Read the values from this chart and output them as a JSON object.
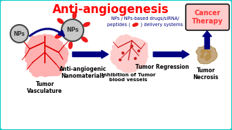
{
  "title": "Anti-angiogenesis",
  "title_color": "#FF0000",
  "title_fontsize": 12,
  "bg_color": "#FFFFFF",
  "border_color": "#00CCCC",
  "border_lw": 3,
  "cancer_therapy_text": "Cancer\nTherapy",
  "cancer_therapy_color": "#FF3333",
  "cancer_therapy_box_color": "#FFCCCC",
  "cancer_therapy_box_edge": "#333333",
  "cancer_therapy_fontsize": 7,
  "np_label": "NPs",
  "np_circle_color": "#C8C8C8",
  "np_circle_edge": "#444444",
  "np_spikes_color": "#EE1111",
  "np_text_color": "#333333",
  "np_small_label": "NPs",
  "arrow_color": "#000080",
  "label_antiang": "Anti-angiogenic\nNanomaterials",
  "label_antiang_color": "#000000",
  "label_antiang_fontsize": 5.5,
  "label_tumorvasc": "Tumor\nVasculature",
  "label_tumorvasc_color": "#000000",
  "label_tumorvasc_fontsize": 5.5,
  "label_inhibition": "Inhibition of Tumor\nblood vessels",
  "label_inhibition_color": "#000000",
  "label_inhibition_fontsize": 5.2,
  "label_regression": "Tumor Regression",
  "label_regression_color": "#000000",
  "label_regression_fontsize": 5.5,
  "label_necrosis": "Tumor\nNecrosis",
  "label_necrosis_color": "#000000",
  "label_necrosis_fontsize": 5.5,
  "np_text_line1": "NPs / NPs-based drugs/siRNA/",
  "np_text_line2": "peptides (       ) delivery systems",
  "np_text_color2": "#000080",
  "np_text_fontsize": 4.8,
  "tumor_fill": "#FFB0B0",
  "tumor_vessel_color": "#DD0000",
  "small_tumor_fill": "#FFCCCC",
  "necrosis_color": "#C4A882",
  "necrosis_dark": "#8B6914"
}
